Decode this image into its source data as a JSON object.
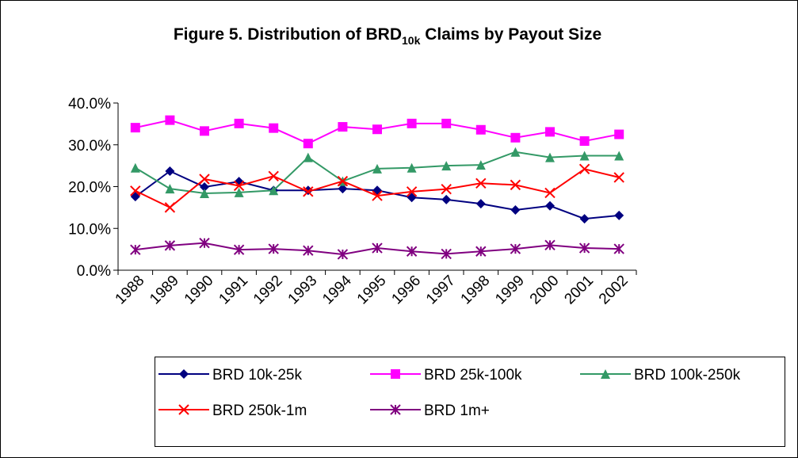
{
  "chart_data": {
    "type": "line",
    "title": [
      "Figure 5.  Distribution of BRD",
      "10k",
      " Claims by Payout Size"
    ],
    "categories": [
      "1988",
      "1989",
      "1990",
      "1991",
      "1992",
      "1993",
      "1994",
      "1995",
      "1996",
      "1997",
      "1998",
      "1999",
      "2000",
      "2001",
      "2002"
    ],
    "series": [
      {
        "name": "BRD 10k-25k",
        "color": "#000080",
        "marker": "diamond",
        "values": [
          17.6,
          23.7,
          19.9,
          21.2,
          19.1,
          19.1,
          19.5,
          19.1,
          17.4,
          16.9,
          15.9,
          14.4,
          15.4,
          12.3,
          13.1
        ]
      },
      {
        "name": "BRD 25k-100k",
        "color": "#ff00ff",
        "marker": "square",
        "values": [
          34.1,
          35.9,
          33.3,
          35.1,
          34.0,
          30.3,
          34.3,
          33.7,
          35.1,
          35.1,
          33.6,
          31.7,
          33.1,
          30.9,
          32.5
        ]
      },
      {
        "name": "BRD 100k-250k",
        "color": "#339966",
        "marker": "triangle",
        "values": [
          24.5,
          19.5,
          18.4,
          18.6,
          19.1,
          27.0,
          21.3,
          24.3,
          24.5,
          25.0,
          25.2,
          28.3,
          27.0,
          27.4,
          27.4
        ]
      },
      {
        "name": "BRD 250k-1m",
        "color": "#ff0000",
        "marker": "x",
        "values": [
          19.0,
          15.0,
          21.8,
          20.2,
          22.5,
          18.8,
          21.3,
          17.8,
          18.8,
          19.4,
          20.8,
          20.4,
          18.5,
          24.2,
          22.2
        ]
      },
      {
        "name": "BRD 1m+",
        "color": "#800080",
        "marker": "star",
        "values": [
          4.9,
          5.9,
          6.5,
          4.9,
          5.1,
          4.7,
          3.8,
          5.3,
          4.5,
          3.9,
          4.5,
          5.1,
          6.0,
          5.3,
          5.1
        ]
      }
    ],
    "ylim": [
      0,
      40
    ],
    "yticks": [
      {
        "value": 0,
        "label": "0.0%"
      },
      {
        "value": 10,
        "label": "10.0%"
      },
      {
        "value": 20,
        "label": "20.0%"
      },
      {
        "value": 30,
        "label": "30.0%"
      },
      {
        "value": 40,
        "label": "40.0%"
      }
    ],
    "grid": false,
    "legend": "bottom"
  }
}
